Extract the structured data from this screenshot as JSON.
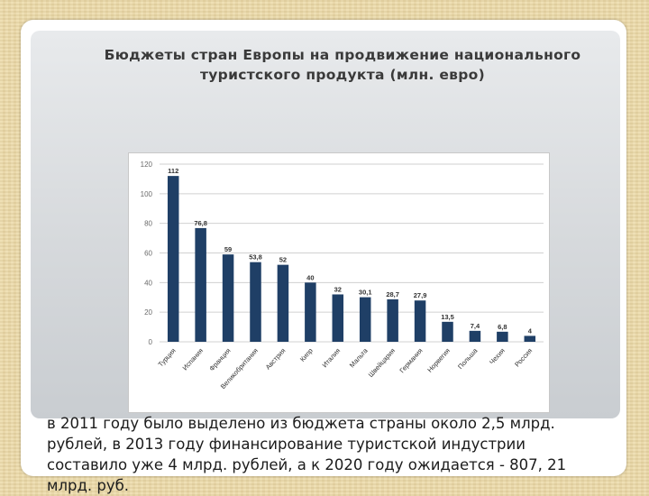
{
  "slide": {
    "title_line1": "Бюджеты стран Европы на продвижение национального",
    "title_line2": "туристского продукта (млн. евро)",
    "caption_line1": "в 2011 году было выделено из бюджета страны около 2,5 млрд.",
    "caption_line2": "рублей, в 2013 году финансирование туристской индустрии",
    "caption_line3": "составило уже 4 млрд. рублей, а к 2020 году ожидается - 807, 21",
    "caption_line4": "млрд. руб."
  },
  "colors": {
    "bar": "#1f3f66",
    "gridline": "#d0d0d0",
    "axis_text": "#6a6a6a",
    "label_text": "#333333"
  },
  "chart_data": {
    "type": "bar",
    "categories": [
      "Турция",
      "Испания",
      "Франция",
      "Великобритания",
      "Австрия",
      "Кипр",
      "Италия",
      "Мальта",
      "Швейцария",
      "Германия",
      "Норвегия",
      "Польша",
      "Чехия",
      "Россия"
    ],
    "values": [
      112,
      76.8,
      59,
      53.8,
      52,
      40,
      32,
      30.1,
      28.7,
      27.9,
      13.5,
      7.4,
      6.8,
      4
    ],
    "value_labels": [
      "112",
      "76,8",
      "59",
      "53,8",
      "52",
      "40",
      "32",
      "30,1",
      "28,7",
      "27,9",
      "13,5",
      "7,4",
      "6,8",
      "4"
    ],
    "yticks": [
      0,
      20,
      40,
      60,
      80,
      100,
      120
    ],
    "ylim": [
      0,
      120
    ],
    "title": "",
    "xlabel": "",
    "ylabel": "",
    "grid": true,
    "legend": "none"
  }
}
